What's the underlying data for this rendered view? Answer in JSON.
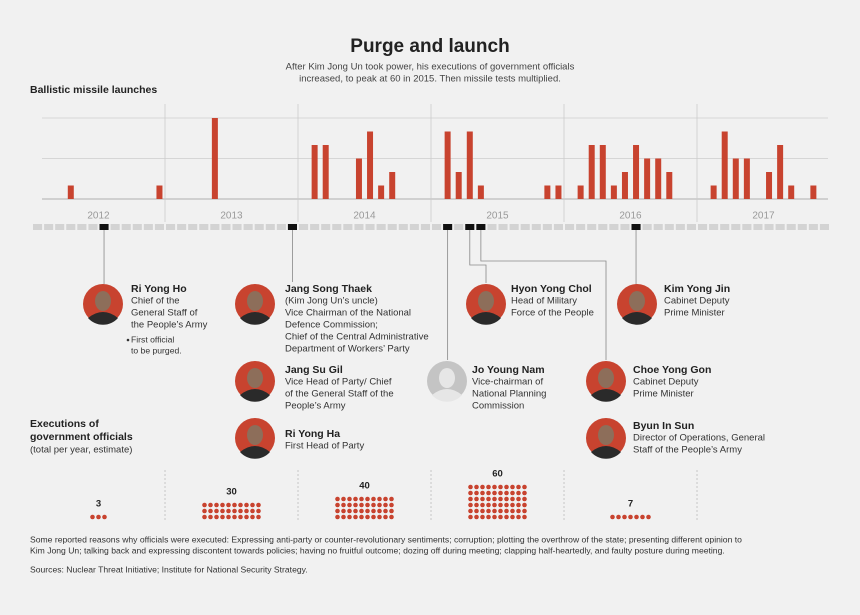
{
  "title": "Purge and launch",
  "subtitle": [
    "After Kim Jong Un took power, his executions of government officials",
    "increased, to peak at 60 in 2015. Then missile tests multiplied."
  ],
  "chart_data": [
    {
      "type": "bar",
      "title": "Ballistic missile launches",
      "years": [
        "2012",
        "2013",
        "2014",
        "2015",
        "2016",
        "2017"
      ],
      "values": [
        0,
        0,
        0,
        1,
        0,
        0,
        0,
        0,
        0,
        0,
        0,
        1,
        0,
        0,
        0,
        0,
        6,
        0,
        0,
        0,
        0,
        0,
        0,
        0,
        0,
        4,
        4,
        0,
        0,
        3,
        5,
        1,
        2,
        0,
        0,
        0,
        0,
        5,
        2,
        5,
        1,
        0,
        0,
        0,
        0,
        0,
        1,
        1,
        0,
        1,
        4,
        4,
        1,
        2,
        4,
        3,
        3,
        2,
        0,
        0,
        0,
        1,
        5,
        3,
        3,
        0,
        2,
        4,
        1,
        0,
        1,
        0
      ],
      "ylim": [
        0,
        6
      ],
      "yticks": [
        0,
        3,
        6
      ],
      "grid": true,
      "color": "#c8432f"
    },
    {
      "type": "dots",
      "title": [
        "Executions of",
        "government officials"
      ],
      "subtitle": "(total per year, estimate)",
      "values": [
        3,
        30,
        40,
        60,
        7
      ],
      "color": "#c8432f"
    }
  ],
  "people": [
    {
      "name": "Ri Yong Ho",
      "lines": [
        "Chief of the",
        "General Staff of",
        "the People’s Army"
      ],
      "note": [
        "First official",
        "to be purged."
      ]
    },
    {
      "name": "Jang Song Thaek",
      "lines": [
        "(Kim Jong Un’s uncle)",
        "Vice Chairman of the National",
        "Defence Commission;",
        "Chief of the Central Administrative",
        "Department of Workers’ Party"
      ]
    },
    {
      "name": "Jang Su Gil",
      "lines": [
        "Vice Head of Party/ Chief",
        "of the General Staff of the",
        "People’s Army"
      ]
    },
    {
      "name": "Ri Yong Ha",
      "lines": [
        "First Head of Party"
      ]
    },
    {
      "name": "Jo Young Nam",
      "lines": [
        "Vice-chairman of",
        "National Planning",
        "Commission"
      ]
    },
    {
      "name": "Hyon Yong Chol",
      "lines": [
        "Head of Military",
        "Force of the People"
      ]
    },
    {
      "name": "Choe Yong Gon",
      "lines": [
        "Cabinet Deputy",
        "Prime Minister"
      ]
    },
    {
      "name": "Byun In Sun",
      "lines": [
        "Director of Operations, General",
        "Staff of the  People’s Army"
      ]
    },
    {
      "name": "Kim Yong Jin",
      "lines": [
        "Cabinet Deputy",
        "Prime Minister"
      ]
    }
  ],
  "footnote": [
    "Some reported reasons why officials were executed: Expressing anti-party or counter-revolutionary sentiments; corruption; plotting the overthrow of the state;  presenting different opinion to",
    "Kim Jong Un; talking back and expressing discontent towards policies; having no fruitful outcome; dozing off during meeting; clapping half-heartedly, and faulty posture during meeting."
  ],
  "sources": "Sources: Nuclear Threat Initiative; Institute for National Security Strategy."
}
